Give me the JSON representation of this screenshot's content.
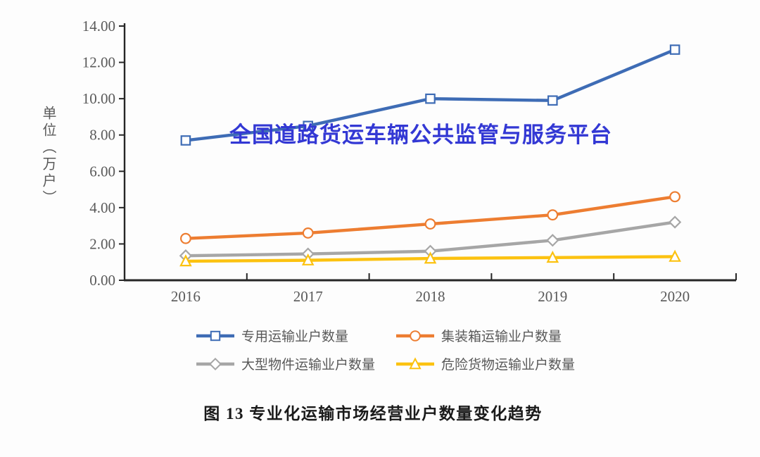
{
  "watermark": {
    "text": "全国道路货运车辆公共监管与服务平台",
    "color": "#3338D4"
  },
  "caption": "图 13 专业化运输市场经营业户数量变化趋势",
  "colors": {
    "axis": "#262626",
    "tick_text": "#595959",
    "marker_fill": "#ffffff"
  },
  "chart_data": {
    "type": "line",
    "title": "",
    "xlabel": "",
    "ylabel": "单位（万户）",
    "categories": [
      "2016",
      "2017",
      "2018",
      "2019",
      "2020"
    ],
    "ylim": [
      0,
      14
    ],
    "ytick_step": 2,
    "ytick_labels": [
      "14.00",
      "12.00",
      "10.00",
      "8.00",
      "6.00",
      "4.00",
      "2.00",
      "0.00"
    ],
    "grid": false,
    "legend_position": "bottom",
    "series": [
      {
        "name": "专用运输业户数量",
        "marker": "square",
        "color": "#3E6CB5",
        "values": [
          7.7,
          8.5,
          10.0,
          9.9,
          12.7
        ]
      },
      {
        "name": "集装箱运输业户数量",
        "marker": "circle",
        "color": "#ED7D31",
        "values": [
          2.3,
          2.6,
          3.1,
          3.6,
          4.6
        ]
      },
      {
        "name": "大型物件运输业户数量",
        "marker": "diamond",
        "color": "#A6A6A6",
        "values": [
          1.35,
          1.45,
          1.6,
          2.2,
          3.2
        ]
      },
      {
        "name": "危险货物运输业户数量",
        "marker": "triangle",
        "color": "#FCC210",
        "values": [
          1.05,
          1.1,
          1.2,
          1.25,
          1.3
        ]
      }
    ]
  }
}
